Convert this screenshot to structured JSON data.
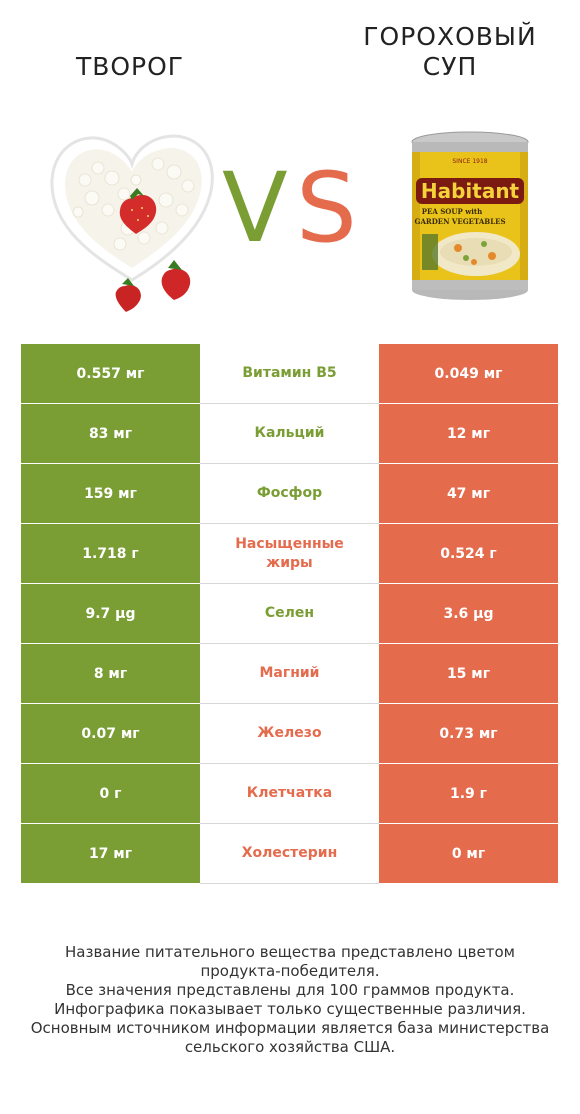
{
  "titles": {
    "left_lines": [
      "творог"
    ],
    "right_lines": [
      "гороховый",
      "суп"
    ],
    "vs_v": "V",
    "vs_s": "S"
  },
  "colors": {
    "left": "#7a9d34",
    "right": "#e56b4d"
  },
  "can_label": {
    "brand": "Habitant",
    "top": "SINCE 1918",
    "line1": "PEA SOUP with",
    "line2": "GARDEN VEGETABLES"
  },
  "chart_data": {
    "type": "table",
    "columns": [
      "творог",
      "гороховый суп"
    ],
    "rows": [
      {
        "nutrient": "Витамин B5",
        "left": "0.557 мг",
        "right": "0.049 мг",
        "winner": "left"
      },
      {
        "nutrient": "Кальций",
        "left": "83 мг",
        "right": "12 мг",
        "winner": "left"
      },
      {
        "nutrient": "Фосфор",
        "left": "159 мг",
        "right": "47 мг",
        "winner": "left"
      },
      {
        "nutrient": "Насыщенные жиры",
        "left": "1.718 г",
        "right": "0.524 г",
        "winner": "right"
      },
      {
        "nutrient": "Селен",
        "left": "9.7 µg",
        "right": "3.6 µg",
        "winner": "left"
      },
      {
        "nutrient": "Магний",
        "left": "8 мг",
        "right": "15 мг",
        "winner": "right"
      },
      {
        "nutrient": "Железо",
        "left": "0.07 мг",
        "right": "0.73 мг",
        "winner": "right"
      },
      {
        "nutrient": "Клетчатка",
        "left": "0 г",
        "right": "1.9 г",
        "winner": "right"
      },
      {
        "nutrient": "Холестерин",
        "left": "17 мг",
        "right": "0 мг",
        "winner": "right"
      }
    ]
  },
  "footer_lines": [
    "Название питательного вещества представлено цветом",
    "продукта-победителя.",
    "Все значения представлены для 100 граммов продукта.",
    "Инфографика показывает только существенные различия.",
    "Основным источником информации является база министерства",
    "сельского хозяйства США."
  ]
}
